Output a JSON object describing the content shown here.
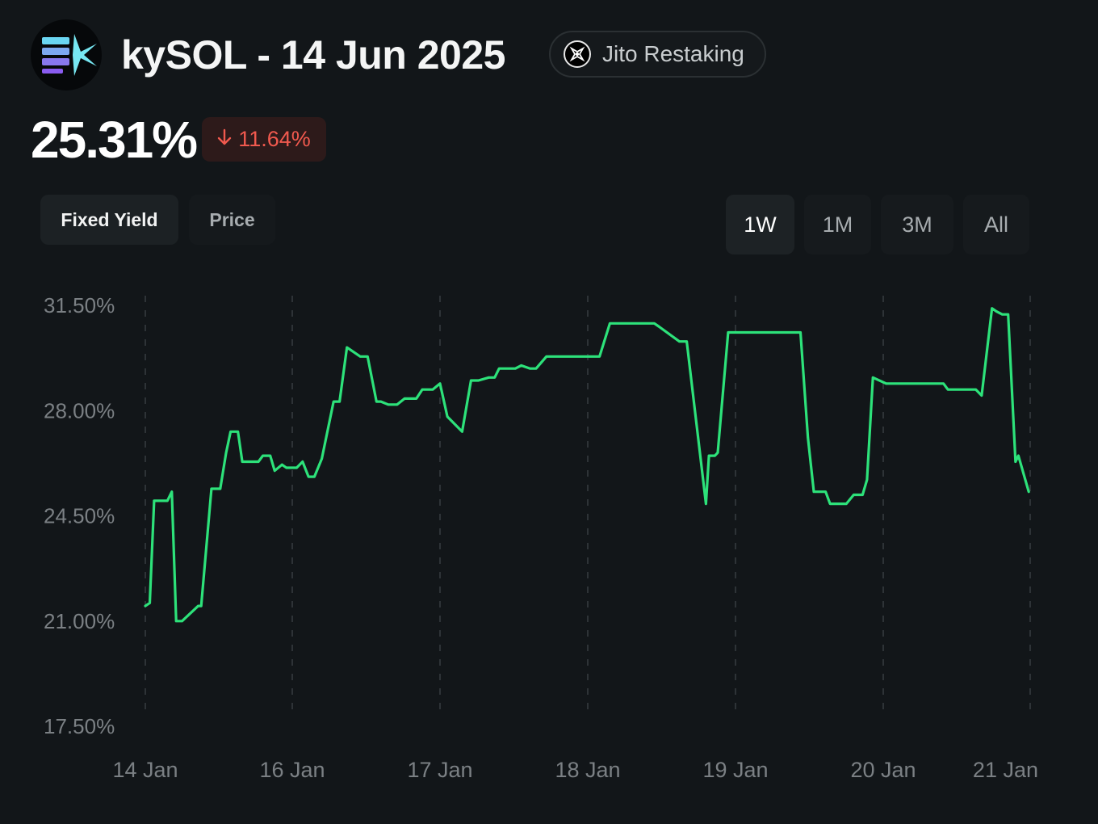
{
  "header": {
    "title": "kySOL - 14 Jun 2025",
    "protocol_label": "Jito Restaking",
    "logo_icon": "kysol-logo-icon",
    "protocol_icon": "jito-icon"
  },
  "summary": {
    "value": "25.31%",
    "change": "11.64%",
    "change_direction": "down",
    "change_icon": "arrow-down-icon",
    "change_color": "#f0594e"
  },
  "metric_tabs": [
    {
      "label": "Fixed Yield",
      "active": true
    },
    {
      "label": "Price",
      "active": false
    }
  ],
  "range_buttons": [
    {
      "label": "1W",
      "active": true
    },
    {
      "label": "1M",
      "active": false
    },
    {
      "label": "3M",
      "active": false
    },
    {
      "label": "All",
      "active": false
    }
  ],
  "colors": {
    "background": "#121619",
    "line": "#2de27a",
    "grid": "#2e3337",
    "tick_text": "#7b8084"
  },
  "chart_data": {
    "type": "line",
    "title": "",
    "xlabel": "",
    "ylabel": "",
    "ylim": [
      17.5,
      31.5
    ],
    "y_ticks": [
      "31.50%",
      "28.00%",
      "24.50%",
      "21.00%",
      "17.50%"
    ],
    "y_tick_values": [
      31.5,
      28.0,
      24.5,
      21.0,
      17.5
    ],
    "x_ticks": [
      "14 Jan",
      "16 Jan",
      "17 Jan",
      "18 Jan",
      "19 Jan",
      "20 Jan",
      "21 Jan"
    ],
    "x_tick_values": [
      0,
      1,
      2,
      3,
      4,
      5,
      6
    ],
    "grid": "vertical-dashed",
    "series": [
      {
        "color": "#2de27a",
        "x": [
          0.0,
          0.03,
          0.06,
          0.15,
          0.18,
          0.21,
          0.25,
          0.36,
          0.38,
          0.45,
          0.51,
          0.55,
          0.58,
          0.63,
          0.66,
          0.7,
          0.77,
          0.8,
          0.85,
          0.88,
          0.93,
          0.96,
          1.03,
          1.07,
          1.11,
          1.15,
          1.2,
          1.28,
          1.32,
          1.37,
          1.46,
          1.51,
          1.57,
          1.6,
          1.65,
          1.71,
          1.76,
          1.81,
          1.84,
          1.88,
          1.95,
          2.0,
          2.05,
          2.15,
          2.21,
          2.26,
          2.33,
          2.37,
          2.4,
          2.43,
          2.46,
          2.51,
          2.55,
          2.61,
          2.65,
          2.72,
          2.79,
          2.85,
          2.92,
          2.96,
          3.03,
          3.08,
          3.15,
          3.45,
          3.48,
          3.62,
          3.65,
          3.67,
          3.8,
          3.82,
          3.86,
          3.88,
          3.95,
          4.0,
          4.04,
          4.12,
          4.26,
          4.44,
          4.49,
          4.53,
          4.61,
          4.64,
          4.69,
          4.75,
          4.8,
          4.86,
          4.89,
          4.93,
          5.02,
          5.15,
          5.24,
          5.29,
          5.41,
          5.44,
          5.53,
          5.59,
          5.63,
          5.67,
          5.74,
          5.77,
          5.81,
          5.85,
          5.9,
          5.92,
          5.99
        ],
        "y": [
          21.5,
          21.6,
          25.0,
          25.0,
          25.3,
          21.0,
          21.0,
          21.5,
          21.5,
          25.4,
          25.4,
          26.6,
          27.3,
          27.3,
          26.3,
          26.3,
          26.3,
          26.5,
          26.5,
          26.0,
          26.2,
          26.1,
          26.1,
          26.3,
          25.8,
          25.8,
          26.4,
          28.3,
          28.3,
          30.1,
          29.8,
          29.8,
          28.3,
          28.3,
          28.2,
          28.2,
          28.4,
          28.4,
          28.4,
          28.7,
          28.7,
          28.9,
          27.8,
          27.3,
          29.0,
          29.0,
          29.1,
          29.1,
          29.4,
          29.4,
          29.4,
          29.4,
          29.5,
          29.4,
          29.4,
          29.8,
          29.8,
          29.8,
          29.8,
          29.8,
          29.8,
          29.8,
          30.9,
          30.9,
          30.8,
          30.3,
          30.3,
          30.3,
          24.9,
          26.5,
          26.5,
          26.6,
          30.6,
          30.6,
          30.6,
          30.6,
          30.6,
          30.6,
          27.1,
          25.3,
          25.3,
          24.9,
          24.9,
          24.9,
          25.2,
          25.2,
          25.7,
          29.1,
          28.9,
          28.9,
          28.9,
          28.9,
          28.9,
          28.7,
          28.7,
          28.7,
          28.7,
          28.5,
          31.4,
          31.3,
          31.2,
          31.2,
          26.3,
          26.5,
          25.3
        ]
      }
    ]
  }
}
